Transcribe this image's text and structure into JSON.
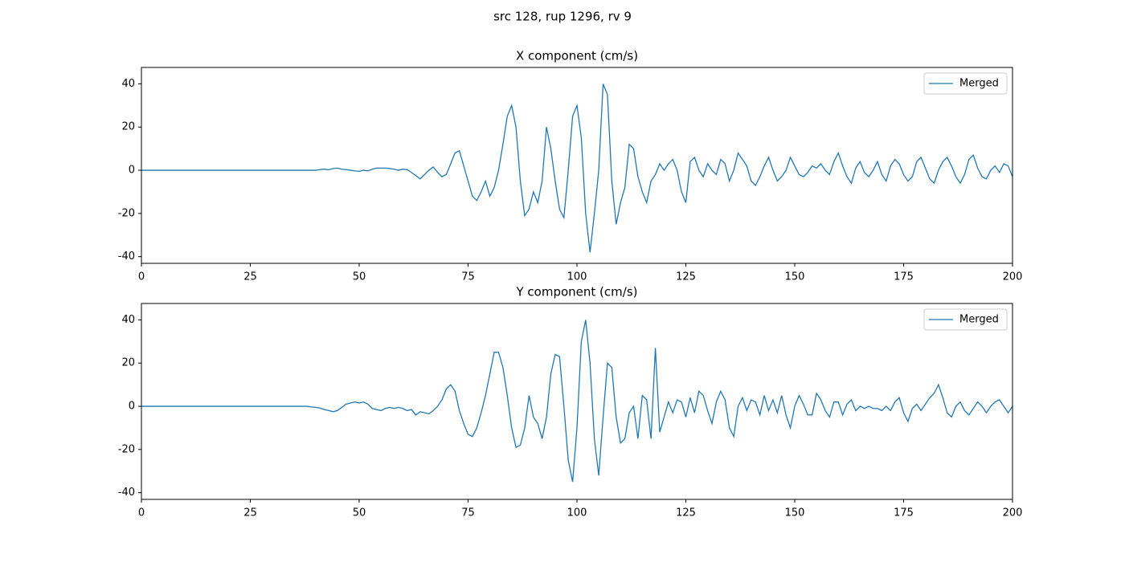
{
  "title": "src 128, rup 1296, rv 9",
  "chart_data": [
    {
      "type": "line",
      "title": "X component (cm/s)",
      "x": [
        0,
        5,
        10,
        15,
        20,
        25,
        30,
        35,
        36,
        37,
        38,
        39,
        40,
        41,
        42,
        43,
        44,
        45,
        46,
        47,
        48,
        49,
        50,
        51,
        52,
        53,
        54,
        55,
        56,
        57,
        58,
        59,
        60,
        61,
        62,
        63,
        64,
        65,
        66,
        67,
        68,
        69,
        70,
        71,
        72,
        73,
        74,
        75,
        76,
        77,
        78,
        79,
        80,
        81,
        82,
        83,
        84,
        85,
        86,
        87,
        88,
        89,
        90,
        91,
        92,
        93,
        94,
        95,
        96,
        97,
        98,
        99,
        100,
        101,
        102,
        103,
        104,
        105,
        106,
        107,
        108,
        109,
        110,
        111,
        112,
        113,
        114,
        115,
        116,
        117,
        118,
        119,
        120,
        121,
        122,
        123,
        124,
        125,
        126,
        127,
        128,
        129,
        130,
        131,
        132,
        133,
        134,
        135,
        136,
        137,
        138,
        139,
        140,
        141,
        142,
        143,
        144,
        145,
        146,
        147,
        148,
        149,
        150,
        151,
        152,
        153,
        154,
        155,
        156,
        157,
        158,
        159,
        160,
        161,
        162,
        163,
        164,
        165,
        166,
        167,
        168,
        169,
        170,
        171,
        172,
        173,
        174,
        175,
        176,
        177,
        178,
        179,
        180,
        181,
        182,
        183,
        184,
        185,
        186,
        187,
        188,
        189,
        190,
        191,
        192,
        193,
        194,
        195,
        196,
        197,
        198,
        199,
        200
      ],
      "series": [
        {
          "name": "Merged",
          "color": "#1f77b4",
          "values": [
            0,
            0,
            0,
            0,
            0,
            0,
            0,
            0,
            0,
            0,
            0,
            0,
            0,
            0.3,
            0.5,
            0.2,
            0.8,
            1,
            0.5,
            0.3,
            0,
            -0.3,
            -0.5,
            0,
            -0.3,
            0.5,
            1,
            1,
            1,
            0.8,
            0.5,
            0,
            0.5,
            0.3,
            -1,
            -2.5,
            -4,
            -2,
            0,
            1.5,
            -1,
            -3,
            -2,
            3,
            8,
            9,
            2,
            -5,
            -12,
            -14,
            -10,
            -5,
            -12,
            -8,
            0,
            12,
            25,
            30,
            20,
            -5,
            -21,
            -18,
            -10,
            -15,
            -5,
            20,
            10,
            -5,
            -18,
            -22,
            0,
            25,
            30,
            15,
            -20,
            -38,
            -20,
            0,
            40,
            35,
            -5,
            -25,
            -15,
            -8,
            12,
            10,
            -3,
            -10,
            -15,
            -5,
            -2,
            3,
            0,
            3,
            5,
            0,
            -10,
            -15,
            4,
            6,
            0,
            -3,
            3,
            0,
            -2,
            5,
            3,
            -5,
            0,
            8,
            5,
            2,
            -5,
            -7,
            -3,
            2,
            6,
            0,
            -5,
            -3,
            0,
            6,
            2,
            -2,
            -3,
            -1,
            2,
            1,
            3,
            0,
            -2,
            4,
            8,
            2,
            -3,
            -6,
            1,
            4,
            -1,
            -3,
            0,
            4,
            -2,
            -5,
            2,
            5,
            3,
            -2,
            -5,
            -3,
            4,
            6,
            1,
            -4,
            -6,
            0,
            4,
            6,
            2,
            -3,
            -6,
            -2,
            5,
            7,
            1,
            -3,
            -4,
            0,
            2,
            -1,
            3,
            2,
            -3
          ]
        }
      ],
      "xlim": [
        0,
        200
      ],
      "xticks": [
        0,
        25,
        50,
        75,
        100,
        125,
        150,
        175,
        200
      ],
      "ylim": [
        -43.1,
        47.6
      ],
      "yticks": [
        -40,
        -20,
        0,
        20,
        40
      ],
      "legend": "upper right"
    },
    {
      "type": "line",
      "title": "Y component (cm/s)",
      "x": [
        0,
        5,
        10,
        15,
        20,
        25,
        30,
        35,
        36,
        37,
        38,
        39,
        40,
        41,
        42,
        43,
        44,
        45,
        46,
        47,
        48,
        49,
        50,
        51,
        52,
        53,
        54,
        55,
        56,
        57,
        58,
        59,
        60,
        61,
        62,
        63,
        64,
        65,
        66,
        67,
        68,
        69,
        70,
        71,
        72,
        73,
        74,
        75,
        76,
        77,
        78,
        79,
        80,
        81,
        82,
        83,
        84,
        85,
        86,
        87,
        88,
        89,
        90,
        91,
        92,
        93,
        94,
        95,
        96,
        97,
        98,
        99,
        100,
        101,
        102,
        103,
        104,
        105,
        106,
        107,
        108,
        109,
        110,
        111,
        112,
        113,
        114,
        115,
        116,
        117,
        118,
        119,
        120,
        121,
        122,
        123,
        124,
        125,
        126,
        127,
        128,
        129,
        130,
        131,
        132,
        133,
        134,
        135,
        136,
        137,
        138,
        139,
        140,
        141,
        142,
        143,
        144,
        145,
        146,
        147,
        148,
        149,
        150,
        151,
        152,
        153,
        154,
        155,
        156,
        157,
        158,
        159,
        160,
        161,
        162,
        163,
        164,
        165,
        166,
        167,
        168,
        169,
        170,
        171,
        172,
        173,
        174,
        175,
        176,
        177,
        178,
        179,
        180,
        181,
        182,
        183,
        184,
        185,
        186,
        187,
        188,
        189,
        190,
        191,
        192,
        193,
        194,
        195,
        196,
        197,
        198,
        199,
        200
      ],
      "series": [
        {
          "name": "Merged",
          "color": "#1f77b4",
          "values": [
            0,
            0,
            0,
            0,
            0,
            0,
            0,
            0,
            0,
            0,
            0,
            -0.3,
            -0.5,
            -0.8,
            -1.5,
            -2,
            -2.5,
            -2,
            -0.5,
            1,
            1.5,
            2,
            1.5,
            2,
            1,
            -1,
            -1.5,
            -2,
            -1,
            -0.5,
            -1,
            -0.5,
            -1,
            -2,
            -1.5,
            -4,
            -2.5,
            -3,
            -3.5,
            -2,
            0,
            3,
            8,
            10,
            7,
            -2,
            -8,
            -13,
            -14,
            -10,
            -3,
            5,
            15,
            25,
            25,
            18,
            5,
            -10,
            -19,
            -18,
            -10,
            5,
            -5,
            -8,
            -15,
            -5,
            15,
            24,
            23,
            0,
            -25,
            -35,
            -10,
            30,
            40,
            20,
            -15,
            -32,
            -5,
            20,
            18,
            -5,
            -17,
            -15,
            -3,
            0,
            -15,
            5,
            3,
            -15,
            27,
            -12,
            -5,
            2,
            -3,
            3,
            2,
            -5,
            4,
            -3,
            7,
            5,
            -2,
            -8,
            2,
            7,
            3,
            -10,
            -14,
            0,
            4,
            -2,
            3,
            2,
            -4,
            5,
            -2,
            3,
            -3,
            5,
            -4,
            -10,
            0,
            5,
            1,
            -4,
            -4,
            6,
            3,
            -2,
            -5,
            2,
            2,
            -4,
            1,
            3,
            -2,
            0,
            -1,
            0,
            -1,
            -1,
            -2,
            0,
            -2,
            2,
            4,
            -3,
            -7,
            -1,
            1,
            -2,
            1,
            4,
            6,
            10,
            4,
            -3,
            -5,
            0,
            2,
            -2,
            -4,
            -1,
            2,
            0,
            -3,
            0,
            2,
            3,
            0,
            -3,
            0
          ]
        }
      ],
      "xlim": [
        0,
        200
      ],
      "xticks": [
        0,
        25,
        50,
        75,
        100,
        125,
        150,
        175,
        200
      ],
      "ylim": [
        -43.1,
        47.6
      ],
      "yticks": [
        -40,
        -20,
        0,
        20,
        40
      ],
      "legend": "upper right"
    }
  ]
}
